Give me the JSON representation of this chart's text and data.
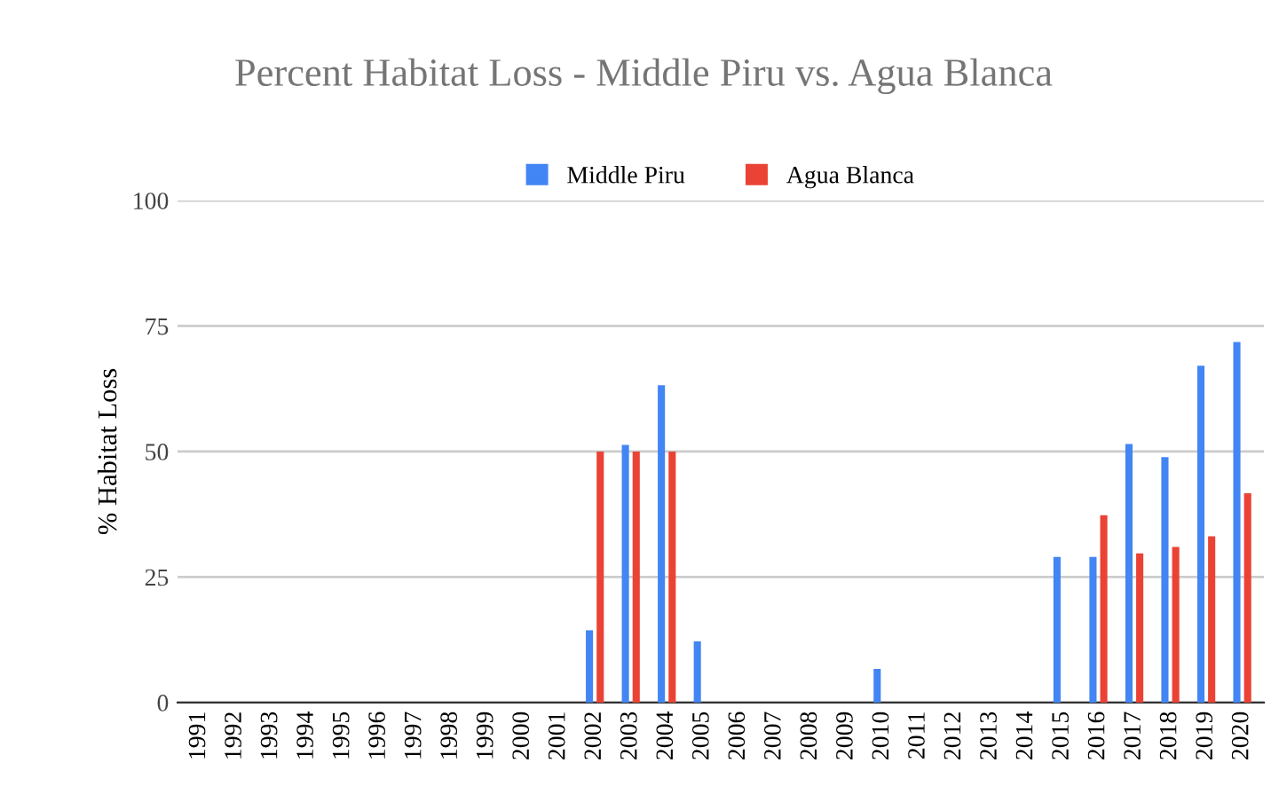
{
  "chart_data": {
    "type": "bar",
    "title": "Percent Habitat Loss - Middle Piru vs. Agua Blanca",
    "ylabel": "% Habitat Loss",
    "categories": [
      "1991",
      "1992",
      "1993",
      "1994",
      "1995",
      "1996",
      "1997",
      "1998",
      "1999",
      "2000",
      "2001",
      "2002",
      "2003",
      "2004",
      "2005",
      "2006",
      "2007",
      "2008",
      "2009",
      "2010",
      "2011",
      "2012",
      "2013",
      "2014",
      "2015",
      "2016",
      "2017",
      "2018",
      "2019",
      "2020"
    ],
    "series": [
      {
        "name": "Middle Piru",
        "color": "#4285f4",
        "values": [
          null,
          null,
          null,
          null,
          null,
          null,
          null,
          null,
          null,
          null,
          null,
          14.4,
          51.3,
          63.2,
          12.2,
          null,
          null,
          null,
          null,
          6.7,
          null,
          null,
          null,
          null,
          29,
          29,
          51.5,
          48.9,
          67.1,
          71.8
        ]
      },
      {
        "name": "Agua Blanca",
        "color": "#ea4335",
        "values": [
          null,
          null,
          null,
          null,
          null,
          null,
          null,
          null,
          null,
          null,
          null,
          50,
          50,
          50,
          null,
          null,
          null,
          null,
          null,
          null,
          null,
          null,
          null,
          null,
          null,
          37.3,
          29.7,
          31,
          33.1,
          41.7
        ]
      }
    ],
    "ylim": [
      0,
      100
    ],
    "yticks": [
      0,
      25,
      50,
      75,
      100
    ],
    "grid": "y",
    "legend": "top"
  }
}
